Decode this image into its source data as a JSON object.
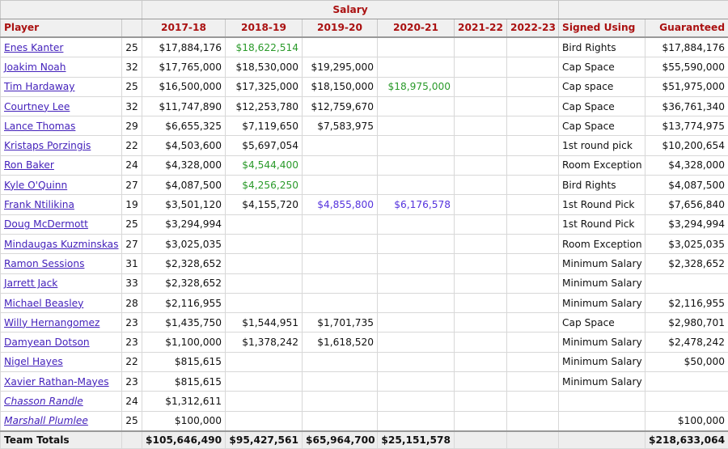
{
  "colors": {
    "header": "#aa1111",
    "link": "#4422bb",
    "green": "#2a9a2a",
    "purple": "#5533dd"
  },
  "header": {
    "group_salary": "Salary",
    "columns": [
      "Player",
      "",
      "2017-18",
      "2018-19",
      "2019-20",
      "2020-21",
      "2021-22",
      "2022-23",
      "Signed Using",
      "Guaranteed"
    ]
  },
  "rows": [
    {
      "player": "Enes Kanter",
      "age": "25",
      "salary": [
        {
          "v": "$17,884,176"
        },
        {
          "v": "$18,622,514",
          "c": "green"
        },
        {
          "v": ""
        },
        {
          "v": ""
        },
        {
          "v": ""
        },
        {
          "v": ""
        }
      ],
      "signed": "Bird Rights",
      "guaranteed": "$17,884,176"
    },
    {
      "player": "Joakim Noah",
      "age": "32",
      "salary": [
        {
          "v": "$17,765,000"
        },
        {
          "v": "$18,530,000"
        },
        {
          "v": "$19,295,000"
        },
        {
          "v": ""
        },
        {
          "v": ""
        },
        {
          "v": ""
        }
      ],
      "signed": "Cap Space",
      "guaranteed": "$55,590,000"
    },
    {
      "player": "Tim Hardaway",
      "age": "25",
      "salary": [
        {
          "v": "$16,500,000"
        },
        {
          "v": "$17,325,000"
        },
        {
          "v": "$18,150,000"
        },
        {
          "v": "$18,975,000",
          "c": "green"
        },
        {
          "v": ""
        },
        {
          "v": ""
        }
      ],
      "signed": "Cap space",
      "guaranteed": "$51,975,000"
    },
    {
      "player": "Courtney Lee",
      "age": "32",
      "salary": [
        {
          "v": "$11,747,890"
        },
        {
          "v": "$12,253,780"
        },
        {
          "v": "$12,759,670"
        },
        {
          "v": ""
        },
        {
          "v": ""
        },
        {
          "v": ""
        }
      ],
      "signed": "Cap Space",
      "guaranteed": "$36,761,340"
    },
    {
      "player": "Lance Thomas",
      "age": "29",
      "salary": [
        {
          "v": "$6,655,325"
        },
        {
          "v": "$7,119,650"
        },
        {
          "v": "$7,583,975"
        },
        {
          "v": ""
        },
        {
          "v": ""
        },
        {
          "v": ""
        }
      ],
      "signed": "Cap Space",
      "guaranteed": "$13,774,975"
    },
    {
      "player": "Kristaps Porzingis",
      "age": "22",
      "salary": [
        {
          "v": "$4,503,600"
        },
        {
          "v": "$5,697,054"
        },
        {
          "v": ""
        },
        {
          "v": ""
        },
        {
          "v": ""
        },
        {
          "v": ""
        }
      ],
      "signed": "1st round pick",
      "guaranteed": "$10,200,654"
    },
    {
      "player": "Ron Baker",
      "age": "24",
      "salary": [
        {
          "v": "$4,328,000"
        },
        {
          "v": "$4,544,400",
          "c": "green"
        },
        {
          "v": ""
        },
        {
          "v": ""
        },
        {
          "v": ""
        },
        {
          "v": ""
        }
      ],
      "signed": "Room Exception",
      "guaranteed": "$4,328,000"
    },
    {
      "player": "Kyle O'Quinn",
      "age": "27",
      "salary": [
        {
          "v": "$4,087,500"
        },
        {
          "v": "$4,256,250",
          "c": "green"
        },
        {
          "v": ""
        },
        {
          "v": ""
        },
        {
          "v": ""
        },
        {
          "v": ""
        }
      ],
      "signed": "Bird Rights",
      "guaranteed": "$4,087,500"
    },
    {
      "player": "Frank Ntilikina",
      "age": "19",
      "salary": [
        {
          "v": "$3,501,120"
        },
        {
          "v": "$4,155,720"
        },
        {
          "v": "$4,855,800",
          "c": "purple"
        },
        {
          "v": "$6,176,578",
          "c": "purple"
        },
        {
          "v": ""
        },
        {
          "v": ""
        }
      ],
      "signed": "1st Round Pick",
      "guaranteed": "$7,656,840"
    },
    {
      "player": "Doug McDermott",
      "age": "25",
      "salary": [
        {
          "v": "$3,294,994"
        },
        {
          "v": ""
        },
        {
          "v": ""
        },
        {
          "v": ""
        },
        {
          "v": ""
        },
        {
          "v": ""
        }
      ],
      "signed": "1st Round Pick",
      "guaranteed": "$3,294,994"
    },
    {
      "player": "Mindaugas Kuzminskas",
      "age": "27",
      "salary": [
        {
          "v": "$3,025,035"
        },
        {
          "v": ""
        },
        {
          "v": ""
        },
        {
          "v": ""
        },
        {
          "v": ""
        },
        {
          "v": ""
        }
      ],
      "signed": "Room Exception",
      "guaranteed": "$3,025,035"
    },
    {
      "player": "Ramon Sessions",
      "age": "31",
      "salary": [
        {
          "v": "$2,328,652"
        },
        {
          "v": ""
        },
        {
          "v": ""
        },
        {
          "v": ""
        },
        {
          "v": ""
        },
        {
          "v": ""
        }
      ],
      "signed": "Minimum Salary",
      "guaranteed": "$2,328,652"
    },
    {
      "player": "Jarrett Jack",
      "age": "33",
      "salary": [
        {
          "v": "$2,328,652"
        },
        {
          "v": ""
        },
        {
          "v": ""
        },
        {
          "v": ""
        },
        {
          "v": ""
        },
        {
          "v": ""
        }
      ],
      "signed": "Minimum Salary",
      "guaranteed": ""
    },
    {
      "player": "Michael Beasley",
      "age": "28",
      "salary": [
        {
          "v": "$2,116,955"
        },
        {
          "v": ""
        },
        {
          "v": ""
        },
        {
          "v": ""
        },
        {
          "v": ""
        },
        {
          "v": ""
        }
      ],
      "signed": "Minimum Salary",
      "guaranteed": "$2,116,955"
    },
    {
      "player": "Willy Hernangomez",
      "age": "23",
      "salary": [
        {
          "v": "$1,435,750"
        },
        {
          "v": "$1,544,951"
        },
        {
          "v": "$1,701,735"
        },
        {
          "v": ""
        },
        {
          "v": ""
        },
        {
          "v": ""
        }
      ],
      "signed": "Cap Space",
      "guaranteed": "$2,980,701"
    },
    {
      "player": "Damyean Dotson",
      "age": "23",
      "salary": [
        {
          "v": "$1,100,000"
        },
        {
          "v": "$1,378,242"
        },
        {
          "v": "$1,618,520"
        },
        {
          "v": ""
        },
        {
          "v": ""
        },
        {
          "v": ""
        }
      ],
      "signed": "Minimum Salary",
      "guaranteed": "$2,478,242"
    },
    {
      "player": "Nigel Hayes",
      "age": "22",
      "salary": [
        {
          "v": "$815,615"
        },
        {
          "v": ""
        },
        {
          "v": ""
        },
        {
          "v": ""
        },
        {
          "v": ""
        },
        {
          "v": ""
        }
      ],
      "signed": "Minimum Salary",
      "guaranteed": "$50,000"
    },
    {
      "player": "Xavier Rathan-Mayes",
      "age": "23",
      "salary": [
        {
          "v": "$815,615"
        },
        {
          "v": ""
        },
        {
          "v": ""
        },
        {
          "v": ""
        },
        {
          "v": ""
        },
        {
          "v": ""
        }
      ],
      "signed": "Minimum Salary",
      "guaranteed": ""
    },
    {
      "player": "Chasson Randle",
      "age": "24",
      "italic": true,
      "salary": [
        {
          "v": "$1,312,611"
        },
        {
          "v": ""
        },
        {
          "v": ""
        },
        {
          "v": ""
        },
        {
          "v": ""
        },
        {
          "v": ""
        }
      ],
      "signed": "",
      "guaranteed": ""
    },
    {
      "player": "Marshall Plumlee",
      "age": "25",
      "italic": true,
      "salary": [
        {
          "v": "$100,000"
        },
        {
          "v": ""
        },
        {
          "v": ""
        },
        {
          "v": ""
        },
        {
          "v": ""
        },
        {
          "v": ""
        }
      ],
      "signed": "",
      "guaranteed": "$100,000"
    }
  ],
  "totals": {
    "label": "Team Totals",
    "salary": [
      "$105,646,490",
      "$95,427,561",
      "$65,964,700",
      "$25,151,578",
      "",
      ""
    ],
    "guaranteed": "$218,633,064"
  }
}
